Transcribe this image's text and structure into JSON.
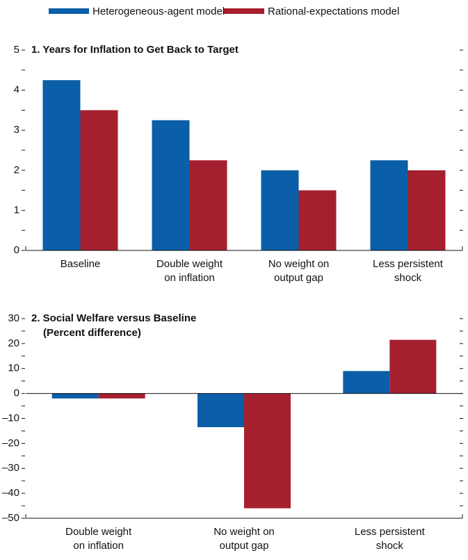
{
  "chart_data": [
    {
      "type": "bar",
      "title": "1. Years for Inflation to Get Back to Target",
      "categories": [
        [
          "Baseline"
        ],
        [
          "Double weight",
          "on inflation"
        ],
        [
          "No weight on",
          "output gap"
        ],
        [
          "Less persistent",
          "shock"
        ]
      ],
      "series": [
        {
          "name": "Heterogeneous-agent model",
          "color": "#0b5ea8",
          "values": [
            4.25,
            3.25,
            2.0,
            2.25
          ]
        },
        {
          "name": "Rational-expectations model",
          "color": "#a61f2f",
          "values": [
            3.5,
            2.25,
            1.5,
            2.0
          ]
        }
      ],
      "ylim": [
        0,
        5
      ],
      "yticks": [
        0,
        1,
        2,
        3,
        4,
        5
      ]
    },
    {
      "type": "bar",
      "title": "2. Social Welfare versus Baseline",
      "subtitle": "(Percent difference)",
      "categories": [
        [
          "Double weight",
          "on inflation"
        ],
        [
          "No weight on",
          "output gap"
        ],
        [
          "Less persistent",
          "shock"
        ]
      ],
      "series": [
        {
          "color": "#0b5ea8",
          "values": [
            -2,
            -13.5,
            9
          ]
        },
        {
          "color": "#a61f2f",
          "values": [
            -2,
            -46,
            21.5
          ]
        }
      ],
      "ylim": [
        -50,
        30
      ],
      "yticks": [
        {
          "value": -50,
          "label": "–50"
        },
        {
          "value": -40,
          "label": "–40"
        },
        {
          "value": -30,
          "label": "–30"
        },
        {
          "value": -20,
          "label": "–20"
        },
        {
          "value": -10,
          "label": "–10"
        },
        0,
        10,
        20,
        30
      ]
    }
  ]
}
